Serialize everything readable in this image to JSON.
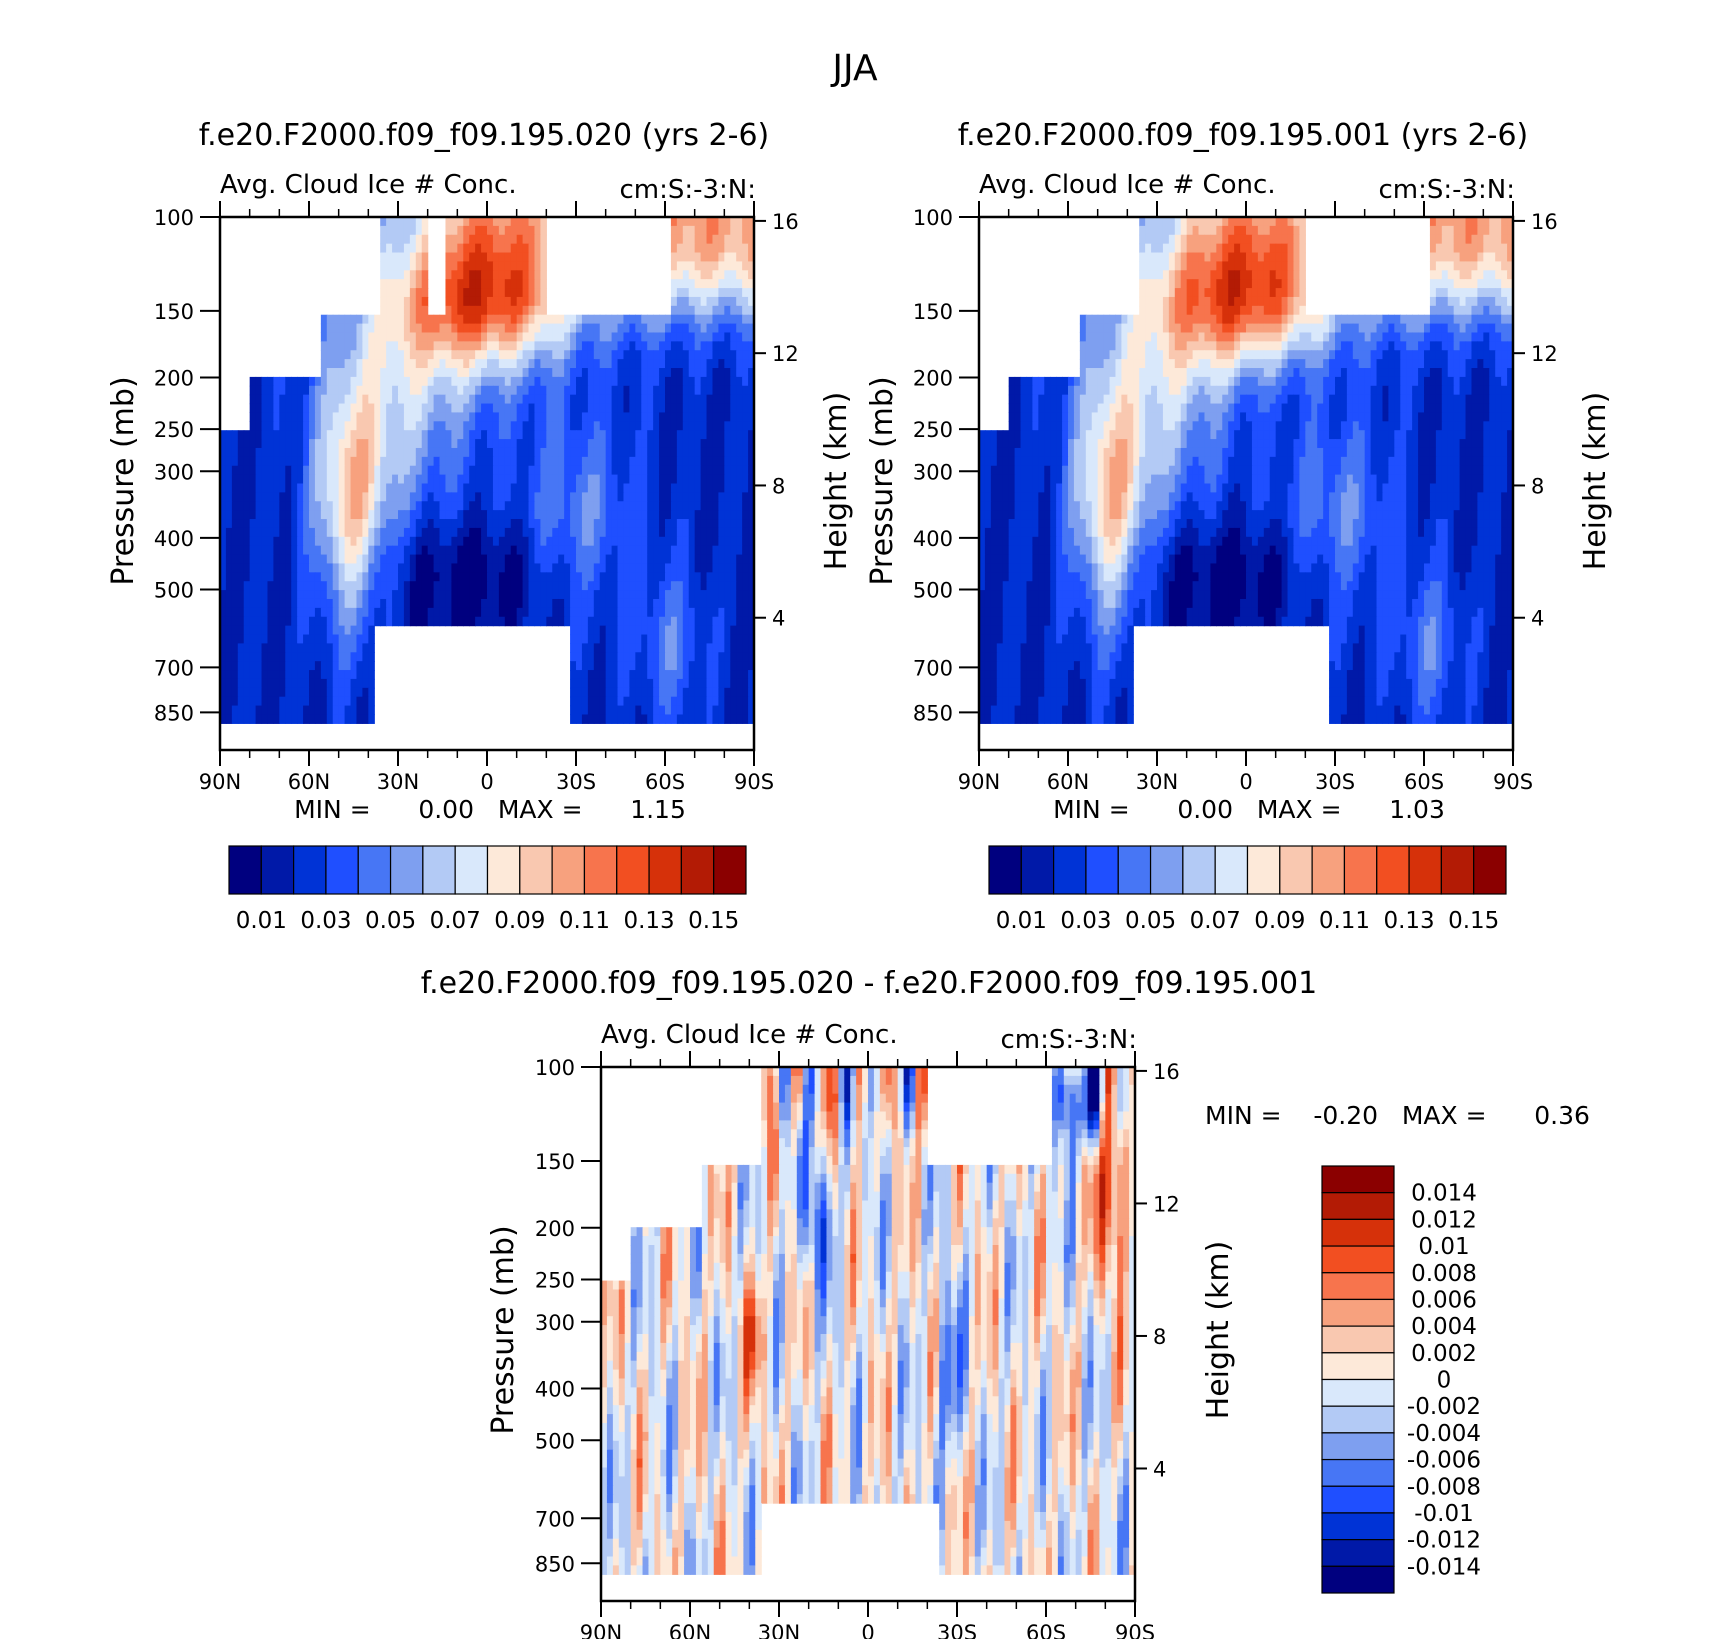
{
  "title": "JJA",
  "panels": [
    {
      "id": "test",
      "title": "f.e20.F2000.f09_f09.195.020 (yrs 2-6)",
      "left_label": "Avg. Cloud Ice # Conc.",
      "right_label": "cm:S:-3:N:",
      "stats_text": "MIN =      0.00   MAX =      1.15",
      "y_left_title": "Pressure (mb)",
      "y_right_title": "Height (km)"
    },
    {
      "id": "ctrl",
      "title": "f.e20.F2000.f09_f09.195.001 (yrs 2-6)",
      "left_label": "Avg. Cloud Ice # Conc.",
      "right_label": "cm:S:-3:N:",
      "stats_text": "MIN =      0.00   MAX =      1.03",
      "y_left_title": "Pressure (mb)",
      "y_right_title": "Height (km)"
    },
    {
      "id": "diff",
      "title": "f.e20.F2000.f09_f09.195.020 - f.e20.F2000.f09_f09.195.001",
      "left_label": "Avg. Cloud Ice # Conc.",
      "right_label": "cm:S:-3:N:",
      "stats_text": "MIN =    -0.20   MAX =      0.36",
      "y_left_title": "Pressure (mb)",
      "y_right_title": "Height (km)"
    }
  ],
  "chart_data": [
    {
      "type": "heatmap",
      "panel": "test",
      "x_ticks": [
        "90N",
        "60N",
        "30N",
        "0",
        "30S",
        "60S",
        "90S"
      ],
      "y_ticks": [
        "100",
        "150",
        "200",
        "250",
        "300",
        "400",
        "500",
        "700",
        "850"
      ],
      "y_right_ticks": [
        "16",
        "12",
        "8",
        "4"
      ],
      "xlim": [
        90,
        -90
      ],
      "ylim": [
        1000,
        100
      ],
      "y_scale": "log",
      "min": 0.0,
      "max": 1.15,
      "colorbar": {
        "orientation": "horizontal",
        "labels": [
          "0.01",
          "0.03",
          "0.05",
          "0.07",
          "0.09",
          "0.11",
          "0.13",
          "0.15"
        ],
        "colors": [
          "#00007f",
          "#0019a8",
          "#0033d6",
          "#1f4fff",
          "#4776f5",
          "#7e9ff0",
          "#b3caf5",
          "#d9e8fb",
          "#fde9d9",
          "#f9c8b0",
          "#f7a17e",
          "#f7744d",
          "#f24f21",
          "#d6310a",
          "#b31b05",
          "#8b0000"
        ]
      }
    },
    {
      "type": "heatmap",
      "panel": "ctrl",
      "x_ticks": [
        "90N",
        "60N",
        "30N",
        "0",
        "30S",
        "60S",
        "90S"
      ],
      "y_ticks": [
        "100",
        "150",
        "200",
        "250",
        "300",
        "400",
        "500",
        "700",
        "850"
      ],
      "y_right_ticks": [
        "16",
        "12",
        "8",
        "4"
      ],
      "xlim": [
        90,
        -90
      ],
      "ylim": [
        1000,
        100
      ],
      "y_scale": "log",
      "min": 0.0,
      "max": 1.03,
      "colorbar": {
        "orientation": "horizontal",
        "labels": [
          "0.01",
          "0.03",
          "0.05",
          "0.07",
          "0.09",
          "0.11",
          "0.13",
          "0.15"
        ],
        "colors": [
          "#00007f",
          "#0019a8",
          "#0033d6",
          "#1f4fff",
          "#4776f5",
          "#7e9ff0",
          "#b3caf5",
          "#d9e8fb",
          "#fde9d9",
          "#f9c8b0",
          "#f7a17e",
          "#f7744d",
          "#f24f21",
          "#d6310a",
          "#b31b05",
          "#8b0000"
        ]
      }
    },
    {
      "type": "heatmap",
      "panel": "diff",
      "x_ticks": [
        "90N",
        "60N",
        "30N",
        "0",
        "30S",
        "60S",
        "90S"
      ],
      "y_ticks": [
        "100",
        "150",
        "200",
        "250",
        "300",
        "400",
        "500",
        "700",
        "850"
      ],
      "y_right_ticks": [
        "16",
        "12",
        "8",
        "4"
      ],
      "xlim": [
        90,
        -90
      ],
      "ylim": [
        1000,
        100
      ],
      "y_scale": "log",
      "min": -0.2,
      "max": 0.36,
      "colorbar": {
        "orientation": "vertical",
        "labels": [
          "0.014",
          "0.012",
          "0.01",
          "0.008",
          "0.006",
          "0.004",
          "0.002",
          "0",
          "-0.002",
          "-0.004",
          "-0.006",
          "-0.008",
          "-0.01",
          "-0.012",
          "-0.014"
        ],
        "colors": [
          "#8b0000",
          "#b31b05",
          "#d6310a",
          "#f24f21",
          "#f7744d",
          "#f7a17e",
          "#f9c8b0",
          "#fde9d9",
          "#d9e8fb",
          "#b3caf5",
          "#7e9ff0",
          "#4776f5",
          "#1f4fff",
          "#0033d6",
          "#0019a8",
          "#00007f"
        ]
      }
    }
  ]
}
